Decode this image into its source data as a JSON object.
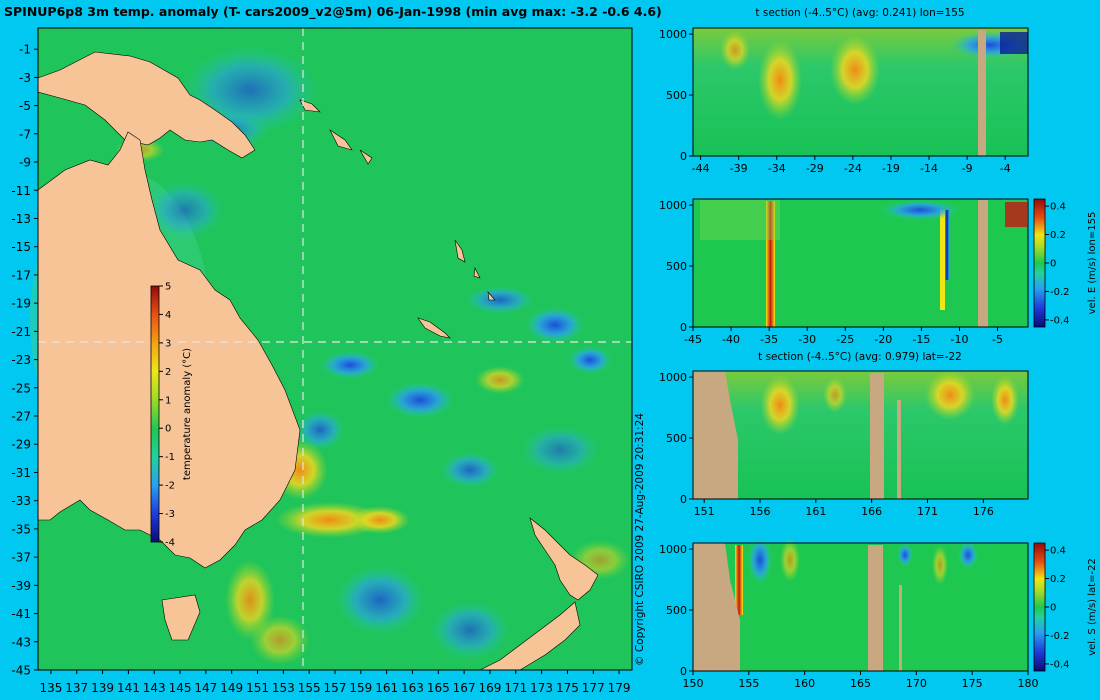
{
  "chart_data": [
    {
      "type": "heatmap",
      "title": "SPINUP6p8 3m temp. anomaly (T- cars2009_v2@5m) 06-Jan-1998 (min avg max: -3.2 -0.6 4.6)",
      "x_ticks": [
        "135",
        "137",
        "139",
        "141",
        "143",
        "145",
        "147",
        "149",
        "151",
        "153",
        "155",
        "157",
        "159",
        "161",
        "163",
        "165",
        "167",
        "169",
        "171",
        "173",
        "175",
        "177",
        "179"
      ],
      "y_ticks": [
        "-1",
        "-3",
        "-5",
        "-7",
        "-9",
        "-11",
        "-13",
        "-15",
        "-17",
        "-19",
        "-21",
        "-23",
        "-25",
        "-27",
        "-29",
        "-31",
        "-33",
        "-35",
        "-37",
        "-39",
        "-41",
        "-43",
        "-45"
      ],
      "xlim": [
        134,
        180
      ],
      "ylim": [
        -45,
        0.5
      ],
      "section_lines": {
        "lon": 155,
        "lat": -22
      },
      "colorbar": {
        "label": "temperature anomaly (°C)",
        "ticks": [
          "5",
          "4",
          "3",
          "2",
          "1",
          "0",
          "-1",
          "-2",
          "-3",
          "-4"
        ],
        "range": [
          -4,
          5
        ]
      }
    },
    {
      "type": "heatmap",
      "title": "t section (-4..5°C) (avg: 0.241) lon=155",
      "x_ticks": [
        "-44",
        "-39",
        "-34",
        "-29",
        "-24",
        "-19",
        "-14",
        "-9",
        "-4"
      ],
      "y_ticks": [
        "0",
        "500",
        "1000"
      ],
      "xlim": [
        -45,
        -1
      ],
      "ylim": [
        1050,
        0
      ]
    },
    {
      "type": "heatmap",
      "x_ticks": [
        "-45",
        "-40",
        "-35",
        "-30",
        "-25",
        "-20",
        "-15",
        "-10",
        "-5"
      ],
      "y_ticks": [
        "0",
        "500",
        "1000"
      ],
      "xlim": [
        -45,
        -1
      ],
      "ylim": [
        1050,
        0
      ],
      "colorbar": {
        "label": "vel. E (m/s) lon=155",
        "ticks": [
          "0.4",
          "0.2",
          "0",
          "-0.2",
          "-0.4"
        ],
        "range": [
          -0.45,
          0.45
        ]
      }
    },
    {
      "type": "heatmap",
      "title": "t section (-4..5°C) (avg: 0.979) lat=-22",
      "x_ticks": [
        "151",
        "156",
        "161",
        "166",
        "171",
        "176"
      ],
      "y_ticks": [
        "0",
        "500",
        "1000"
      ],
      "xlim": [
        150,
        180
      ],
      "ylim": [
        1050,
        0
      ]
    },
    {
      "type": "heatmap",
      "x_ticks": [
        "150",
        "155",
        "160",
        "165",
        "170",
        "175",
        "180"
      ],
      "y_ticks": [
        "0",
        "500",
        "1000"
      ],
      "xlim": [
        150,
        180
      ],
      "ylim": [
        1050,
        0
      ],
      "colorbar": {
        "label": "vel. S (m/s) lat=-22",
        "ticks": [
          "0.4",
          "0.2",
          "0",
          "-0.2",
          "-0.4"
        ],
        "range": [
          -0.45,
          0.45
        ]
      }
    }
  ],
  "copyright": "© Copyright CSIRO 2009   27-Aug-2009 20:31:24",
  "colors": {
    "background": "#00c8f0",
    "land": "#f7c497",
    "seafloor": "#c8a880",
    "field": "#1ec850"
  }
}
